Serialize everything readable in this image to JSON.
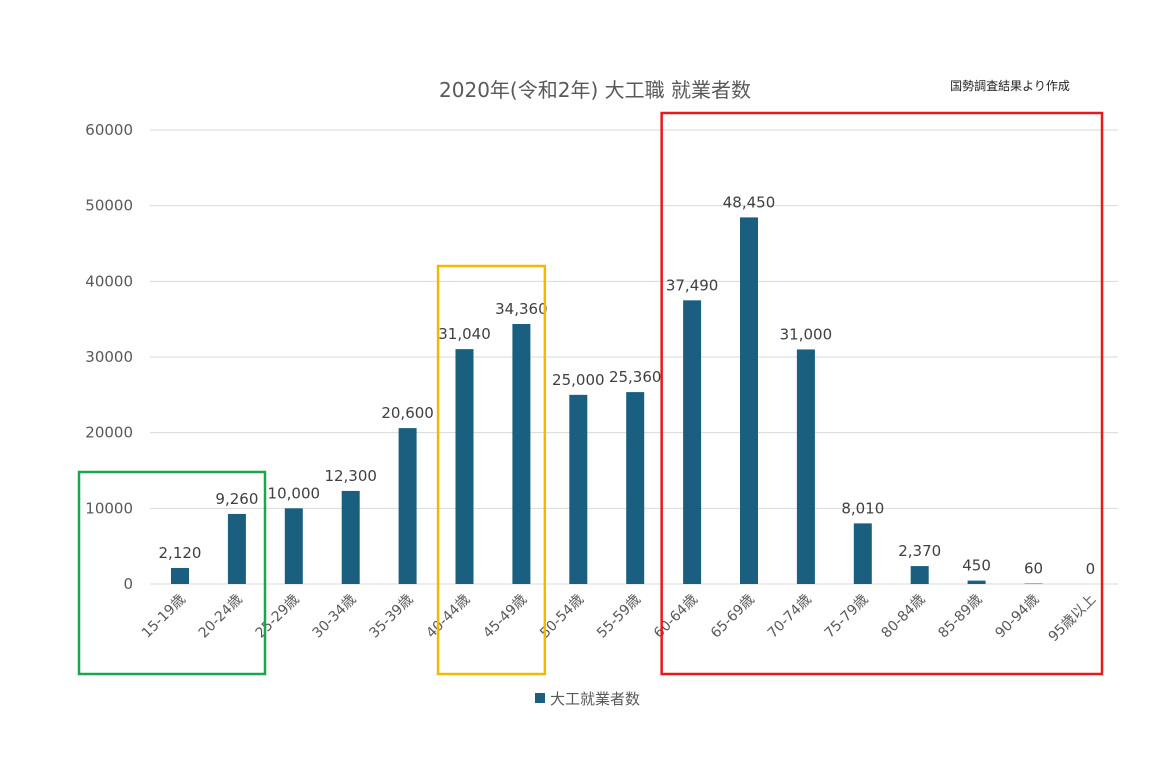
{
  "chart_data": {
    "type": "bar",
    "title": "2020年(令和2年) 大工職 就業者数",
    "source_note": "国勢調査結果より作成",
    "categories": [
      "15-19歳",
      "20-24歳",
      "25-29歳",
      "30-34歳",
      "35-39歳",
      "40-44歳",
      "45-49歳",
      "50-54歳",
      "55-59歳",
      "60-64歳",
      "65-69歳",
      "70-74歳",
      "75-79歳",
      "80-84歳",
      "85-89歳",
      "90-94歳",
      "95歳以上"
    ],
    "series": [
      {
        "name": "大工就業者数",
        "values": [
          2120,
          9260,
          10000,
          12300,
          20600,
          31040,
          34360,
          25000,
          25360,
          37490,
          48450,
          31000,
          8010,
          2370,
          450,
          60,
          0
        ],
        "labels": [
          "2,120",
          "9,260",
          "10,000",
          "12,300",
          "20,600",
          "31,040",
          "34,360",
          "25,000",
          "25,360",
          "37,490",
          "48,450",
          "31,000",
          "8,010",
          "2,370",
          "450",
          "60",
          "0"
        ]
      }
    ],
    "y_ticks": [
      "0",
      "10000",
      "20000",
      "30000",
      "40000",
      "50000",
      "60000"
    ],
    "ylim": [
      0,
      60000
    ],
    "grid": true,
    "legend": "bottom",
    "highlights": [
      {
        "from": "15-19歳",
        "to": "20-24歳",
        "color": "#1aa64a"
      },
      {
        "from": "40-44歳",
        "to": "45-49歳",
        "color": "#f5b800"
      },
      {
        "from": "60-64歳",
        "to": "95歳以上",
        "color": "#e8191b"
      }
    ]
  },
  "colors": {
    "bar": "#1a5f80",
    "grid": "#d9d9d9",
    "text": "#595959"
  }
}
